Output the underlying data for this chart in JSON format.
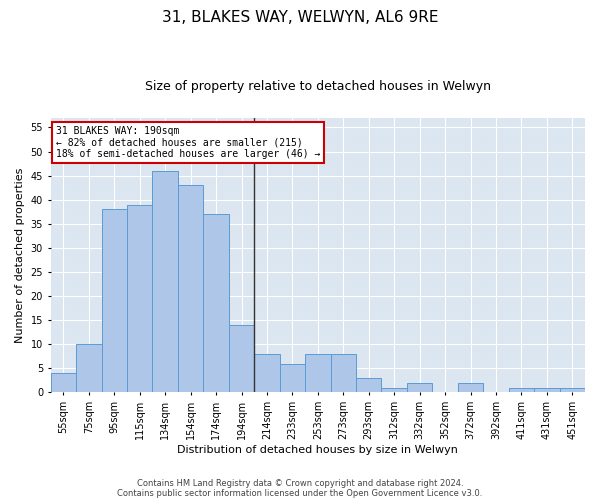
{
  "title1": "31, BLAKES WAY, WELWYN, AL6 9RE",
  "title2": "Size of property relative to detached houses in Welwyn",
  "xlabel": "Distribution of detached houses by size in Welwyn",
  "ylabel": "Number of detached properties",
  "categories": [
    "55sqm",
    "75sqm",
    "95sqm",
    "115sqm",
    "134sqm",
    "154sqm",
    "174sqm",
    "194sqm",
    "214sqm",
    "233sqm",
    "253sqm",
    "273sqm",
    "293sqm",
    "312sqm",
    "332sqm",
    "352sqm",
    "372sqm",
    "392sqm",
    "411sqm",
    "431sqm",
    "451sqm"
  ],
  "values": [
    4,
    10,
    38,
    39,
    46,
    43,
    37,
    14,
    8,
    6,
    8,
    8,
    3,
    1,
    2,
    0,
    2,
    0,
    1,
    1,
    1
  ],
  "bar_color": "#aec6e8",
  "bar_edge_color": "#5b9bd5",
  "vline_pos": 7.5,
  "vline_color": "#333333",
  "annotation_line1": "31 BLAKES WAY: 190sqm",
  "annotation_line2": "← 82% of detached houses are smaller (215)",
  "annotation_line3": "18% of semi-detached houses are larger (46) →",
  "annotation_box_color": "#ffffff",
  "annotation_box_edge_color": "#cc0000",
  "ylim": [
    0,
    57
  ],
  "yticks": [
    0,
    5,
    10,
    15,
    20,
    25,
    30,
    35,
    40,
    45,
    50,
    55
  ],
  "plot_bg_color": "#dce6f1",
  "grid_color": "#ffffff",
  "footer1": "Contains HM Land Registry data © Crown copyright and database right 2024.",
  "footer2": "Contains public sector information licensed under the Open Government Licence v3.0.",
  "title1_fontsize": 11,
  "title2_fontsize": 9,
  "axis_fontsize": 7,
  "ylabel_fontsize": 8,
  "xlabel_fontsize": 8,
  "footer_fontsize": 6
}
